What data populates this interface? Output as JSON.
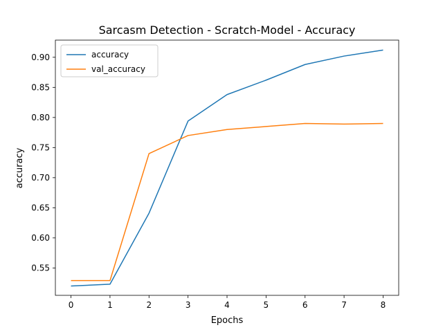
{
  "chart_data": {
    "type": "line",
    "title": "Sarcasm Detection - Scratch-Model - Accuracy",
    "xlabel": "Epochs",
    "ylabel": "accuracy",
    "x": [
      0,
      1,
      2,
      3,
      4,
      5,
      6,
      7,
      8
    ],
    "xlim": [
      -0.4,
      8.4
    ],
    "ylim": [
      0.5045,
      0.9285
    ],
    "xticks": [
      "0",
      "1",
      "2",
      "3",
      "4",
      "5",
      "6",
      "7",
      "8"
    ],
    "yticks": [
      "0.55",
      "0.60",
      "0.65",
      "0.70",
      "0.75",
      "0.80",
      "0.85",
      "0.90"
    ],
    "grid": false,
    "legend_position": "top-left",
    "series": [
      {
        "name": "accuracy",
        "color": "#1f77b4",
        "values": [
          0.52,
          0.523,
          0.641,
          0.794,
          0.838,
          0.862,
          0.888,
          0.902,
          0.912
        ]
      },
      {
        "name": "val_accuracy",
        "color": "#ff7f0e",
        "values": [
          0.529,
          0.529,
          0.74,
          0.77,
          0.78,
          0.785,
          0.79,
          0.789,
          0.79
        ]
      }
    ]
  }
}
